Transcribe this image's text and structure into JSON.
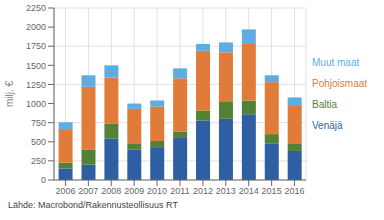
{
  "chart_data": {
    "type": "bar",
    "stacked": true,
    "grid": true,
    "ylabel": "milj. €",
    "annotations": [
      "Lähde: Macrobond/Rakennusteollisuus RT"
    ],
    "categories": [
      "2006",
      "2007",
      "2008",
      "2009",
      "2010",
      "2011",
      "2012",
      "2013",
      "2014",
      "2015",
      "2016"
    ],
    "series": [
      {
        "name": "Venäjä",
        "color": "#2e5fa3",
        "values": [
          150,
          200,
          540,
          400,
          430,
          550,
          780,
          800,
          860,
          480,
          380
        ]
      },
      {
        "name": "Baltia",
        "color": "#538135",
        "values": [
          75,
          200,
          200,
          80,
          80,
          80,
          130,
          220,
          180,
          120,
          100
        ]
      },
      {
        "name": "Pohjoismaat",
        "color": "#e07b39",
        "values": [
          430,
          820,
          600,
          450,
          450,
          700,
          780,
          650,
          750,
          680,
          500
        ]
      },
      {
        "name": "Muut maat",
        "color": "#5dade2",
        "values": [
          100,
          150,
          160,
          70,
          80,
          130,
          90,
          130,
          180,
          90,
          100
        ]
      }
    ],
    "ylim": [
      0,
      2250
    ],
    "yticks": [
      0,
      250,
      500,
      750,
      1000,
      1250,
      1500,
      1750,
      2000,
      2250
    ]
  }
}
